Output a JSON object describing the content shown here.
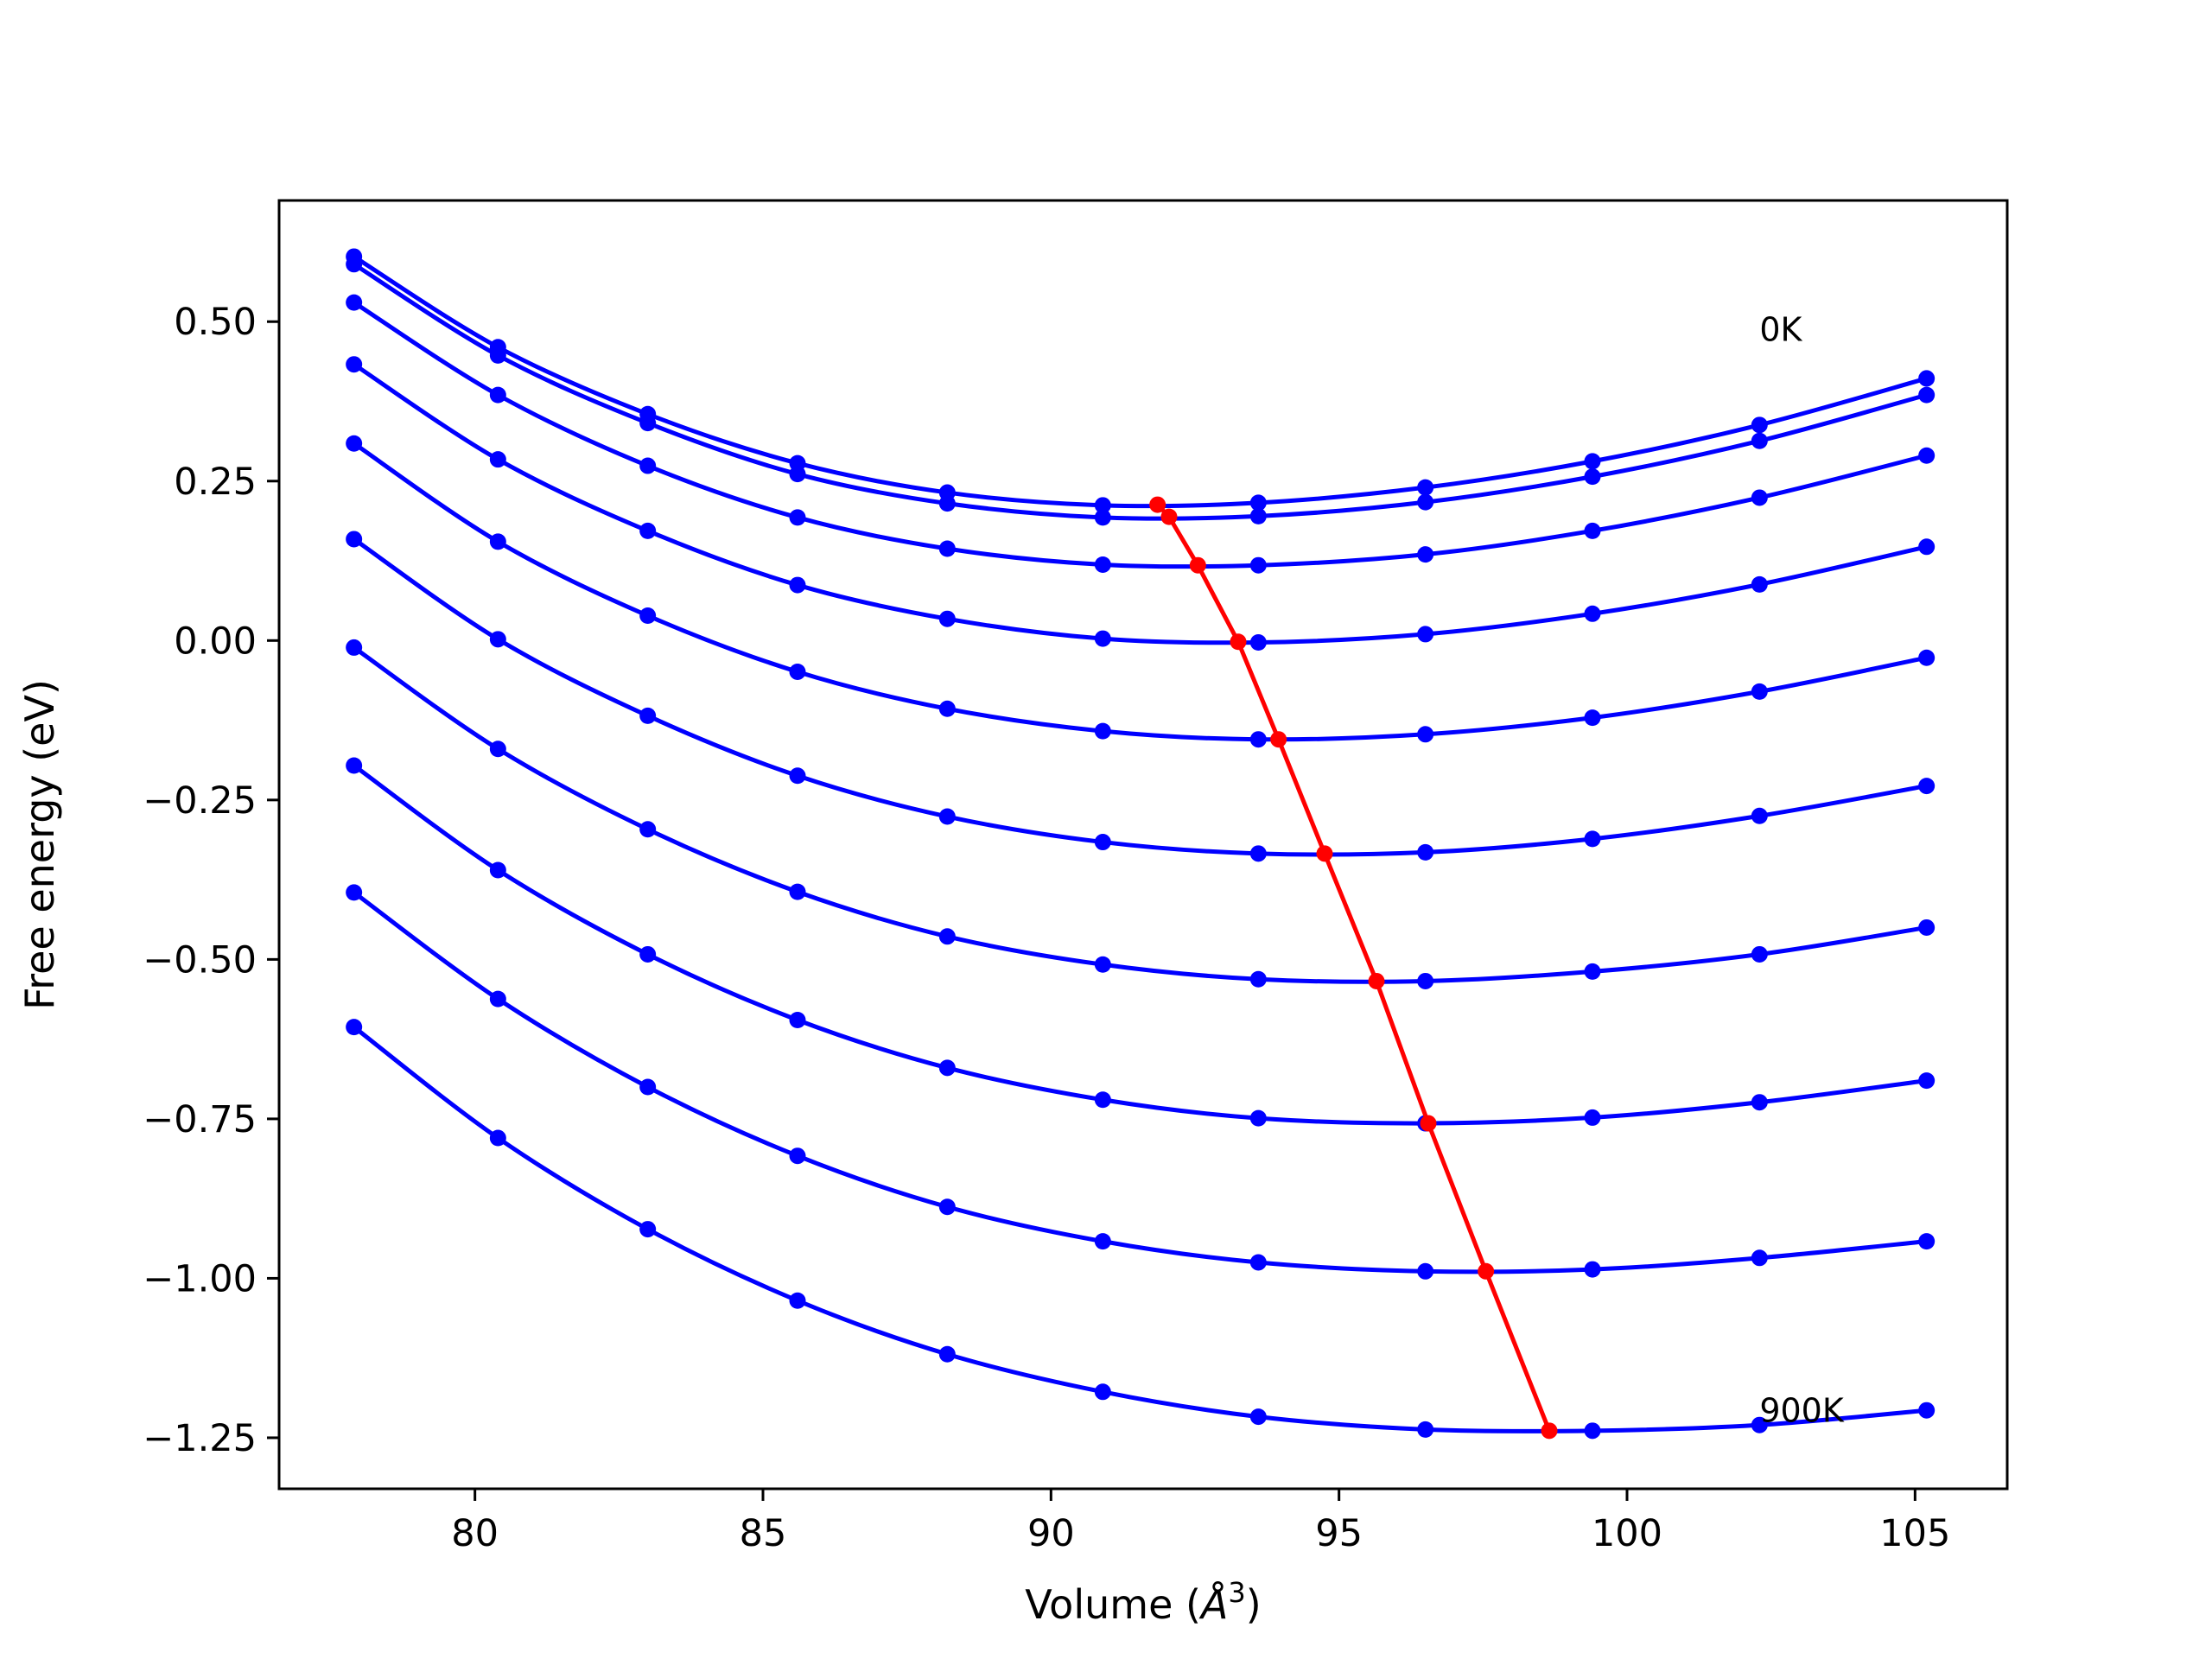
{
  "chart_data": {
    "type": "line",
    "title": "",
    "xlabel": "Volume (",
    "xlabel_unit": "Å",
    "xlabel_exp": "3",
    "xlabel_close": ")",
    "ylabel": "Free energy (eV)",
    "xlim": [
      76.6,
      106.6
    ],
    "ylim": [
      -1.33,
      0.69
    ],
    "xticks": [
      80,
      85,
      90,
      95,
      100,
      105
    ],
    "xtick_labels": [
      "80",
      "85",
      "90",
      "95",
      "100",
      "105"
    ],
    "yticks": [
      0.5,
      0.25,
      0.0,
      -0.25,
      -0.5,
      -0.75,
      -1.0,
      -1.25
    ],
    "ytick_labels": [
      "0.50",
      "0.25",
      "0.00",
      "−0.25",
      "−0.50",
      "−0.75",
      "−1.00",
      "−1.25"
    ],
    "grid": false,
    "x": [
      77.9,
      80.4,
      83.0,
      85.6,
      88.2,
      90.9,
      93.6,
      96.5,
      99.4,
      102.3,
      105.2
    ],
    "series": [
      {
        "values": [
          0.602,
          0.46,
          0.355,
          0.278,
          0.232,
          0.212,
          0.216,
          0.24,
          0.281,
          0.338,
          0.411
        ]
      },
      {
        "values": [
          0.59,
          0.447,
          0.341,
          0.261,
          0.215,
          0.193,
          0.195,
          0.217,
          0.257,
          0.313,
          0.385
        ]
      },
      {
        "values": [
          0.53,
          0.385,
          0.274,
          0.193,
          0.144,
          0.119,
          0.118,
          0.135,
          0.172,
          0.224,
          0.29
        ]
      },
      {
        "values": [
          0.433,
          0.284,
          0.172,
          0.087,
          0.034,
          0.003,
          -0.003,
          0.01,
          0.042,
          0.088,
          0.147
        ]
      },
      {
        "values": [
          0.309,
          0.155,
          0.039,
          -0.049,
          -0.107,
          -0.142,
          -0.155,
          -0.147,
          -0.121,
          -0.08,
          -0.027
        ]
      },
      {
        "values": [
          0.159,
          0.002,
          -0.118,
          -0.212,
          -0.276,
          -0.316,
          -0.334,
          -0.332,
          -0.311,
          -0.275,
          -0.228
        ]
      },
      {
        "values": [
          -0.011,
          -0.17,
          -0.296,
          -0.394,
          -0.464,
          -0.508,
          -0.531,
          -0.534,
          -0.519,
          -0.492,
          -0.45
        ]
      },
      {
        "values": [
          -0.196,
          -0.36,
          -0.492,
          -0.595,
          -0.67,
          -0.72,
          -0.749,
          -0.757,
          -0.748,
          -0.724,
          -0.69
        ]
      },
      {
        "values": [
          -0.395,
          -0.562,
          -0.7,
          -0.808,
          -0.888,
          -0.942,
          -0.975,
          -0.989,
          -0.986,
          -0.968,
          -0.942
        ]
      },
      {
        "values": [
          -0.606,
          -0.78,
          -0.923,
          -1.035,
          -1.119,
          -1.178,
          -1.217,
          -1.237,
          -1.239,
          -1.23,
          -1.207
        ]
      }
    ],
    "min_path": {
      "x": [
        91.85,
        92.05,
        92.55,
        93.25,
        93.95,
        94.75,
        95.65,
        96.55,
        97.55,
        98.65
      ],
      "y": [
        0.213,
        0.194,
        0.118,
        -0.002,
        -0.155,
        -0.334,
        -0.534,
        -0.757,
        -0.989,
        -1.239
      ]
    },
    "series_color": "#0000ff",
    "min_path_color": "#ff0000",
    "annotations": [
      {
        "text": "0K",
        "x": 102.3,
        "y": 0.47
      },
      {
        "text": "900K",
        "x": 102.3,
        "y": -1.225
      }
    ]
  }
}
